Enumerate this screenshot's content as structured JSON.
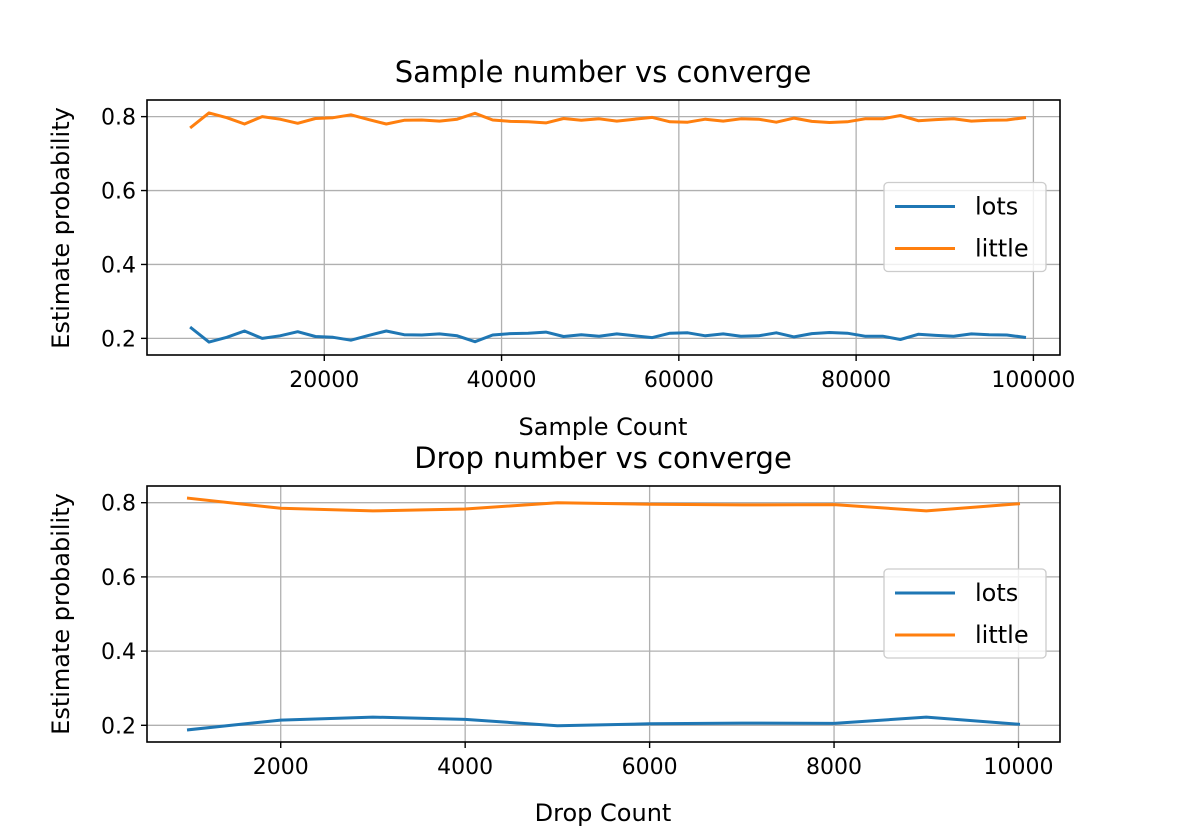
{
  "chart_data": [
    {
      "type": "line",
      "title": "Sample number vs converge",
      "xlabel": "Sample Count",
      "ylabel": "Estimate probability",
      "xlim": [
        0,
        103000
      ],
      "ylim": [
        0.155,
        0.845
      ],
      "xticks": [
        20000,
        40000,
        60000,
        80000,
        100000
      ],
      "yticks": [
        0.2,
        0.4,
        0.6,
        0.8
      ],
      "grid": true,
      "legend_position": "center-right",
      "x": [
        5000,
        7000,
        9000,
        11000,
        13000,
        15000,
        17000,
        19000,
        21000,
        23000,
        25000,
        27000,
        29000,
        31000,
        33000,
        35000,
        37000,
        39000,
        41000,
        43000,
        45000,
        47000,
        49000,
        51000,
        53000,
        55000,
        57000,
        59000,
        61000,
        63000,
        65000,
        67000,
        69000,
        71000,
        73000,
        75000,
        77000,
        79000,
        81000,
        83000,
        85000,
        87000,
        89000,
        91000,
        93000,
        95000,
        97000,
        99000
      ],
      "series": [
        {
          "name": "lots",
          "color": "#1f77b4",
          "values": [
            0.228,
            0.19,
            0.203,
            0.22,
            0.2,
            0.207,
            0.218,
            0.205,
            0.203,
            0.195,
            0.208,
            0.22,
            0.21,
            0.209,
            0.212,
            0.207,
            0.191,
            0.209,
            0.213,
            0.214,
            0.217,
            0.205,
            0.21,
            0.206,
            0.212,
            0.207,
            0.202,
            0.214,
            0.215,
            0.207,
            0.212,
            0.206,
            0.207,
            0.215,
            0.204,
            0.213,
            0.216,
            0.214,
            0.206,
            0.206,
            0.197,
            0.211,
            0.208,
            0.206,
            0.212,
            0.21,
            0.209,
            0.203
          ]
        },
        {
          "name": "little",
          "color": "#ff7f0e",
          "values": [
            0.772,
            0.81,
            0.797,
            0.78,
            0.8,
            0.793,
            0.782,
            0.795,
            0.797,
            0.805,
            0.792,
            0.78,
            0.79,
            0.791,
            0.788,
            0.793,
            0.809,
            0.791,
            0.787,
            0.786,
            0.783,
            0.795,
            0.79,
            0.794,
            0.788,
            0.793,
            0.798,
            0.786,
            0.785,
            0.793,
            0.788,
            0.794,
            0.793,
            0.785,
            0.796,
            0.787,
            0.784,
            0.786,
            0.794,
            0.794,
            0.803,
            0.789,
            0.792,
            0.794,
            0.788,
            0.79,
            0.791,
            0.797
          ]
        }
      ]
    },
    {
      "type": "line",
      "title": "Drop number vs converge",
      "xlabel": "Drop Count",
      "ylabel": "Estimate probability",
      "xlim": [
        550,
        10450
      ],
      "ylim": [
        0.155,
        0.845
      ],
      "xticks": [
        2000,
        4000,
        6000,
        8000,
        10000
      ],
      "yticks": [
        0.2,
        0.4,
        0.6,
        0.8
      ],
      "grid": true,
      "legend_position": "center-right",
      "x": [
        1000,
        2000,
        3000,
        4000,
        5000,
        6000,
        7000,
        8000,
        9000,
        10000
      ],
      "series": [
        {
          "name": "lots",
          "color": "#1f77b4",
          "values": [
            0.188,
            0.214,
            0.222,
            0.216,
            0.199,
            0.204,
            0.206,
            0.205,
            0.222,
            0.203
          ]
        },
        {
          "name": "little",
          "color": "#ff7f0e",
          "values": [
            0.812,
            0.785,
            0.778,
            0.783,
            0.8,
            0.796,
            0.794,
            0.795,
            0.778,
            0.797
          ]
        }
      ]
    }
  ]
}
